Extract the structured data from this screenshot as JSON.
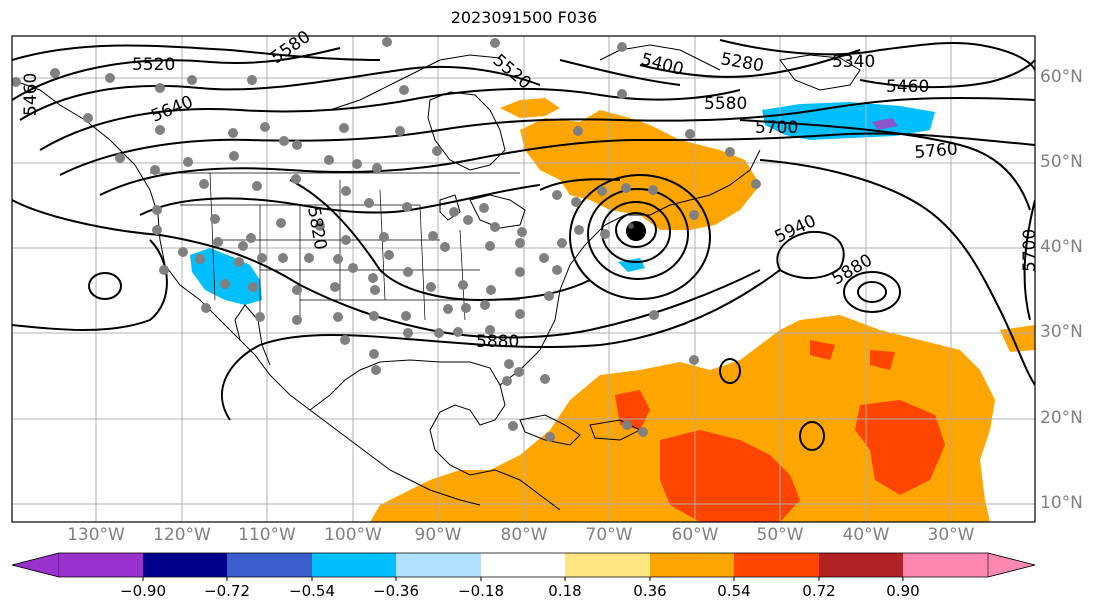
{
  "title": "2023091500 F036",
  "lat_labels": [
    "60°N",
    "50°N",
    "40°N",
    "30°N",
    "20°N",
    "10°N"
  ],
  "lon_labels": [
    "130°W",
    "120°W",
    "110°W",
    "100°W",
    "90°W",
    "80°W",
    "70°W",
    "60°W",
    "50°W",
    "40°W",
    "30°W"
  ],
  "contour_labels": [
    "5460",
    "5520",
    "5580",
    "5640",
    "5580",
    "5700",
    "5760",
    "5280",
    "5340",
    "5460",
    "5400",
    "5520",
    "5820",
    "5880",
    "5940",
    "5880",
    "5700"
  ],
  "colorbar": {
    "ticks": [
      "−0.90",
      "−0.72",
      "−0.54",
      "−0.36",
      "−0.18",
      "0.18",
      "0.36",
      "0.54",
      "0.72",
      "0.90"
    ],
    "colors": [
      "#9932cc",
      "#00008b",
      "#3a5fcd",
      "#00bfff",
      "#b0e2ff",
      "#ffffff",
      "#ffe680",
      "#ffa500",
      "#ff4500",
      "#b22222",
      "#ff88b0"
    ]
  },
  "colors": {
    "orange": "#ffa500",
    "red_orange": "#ff4500",
    "blue": "#00bfff",
    "purple": "#8a56c8",
    "grid": "#b0b0b0",
    "station": "#808080"
  }
}
